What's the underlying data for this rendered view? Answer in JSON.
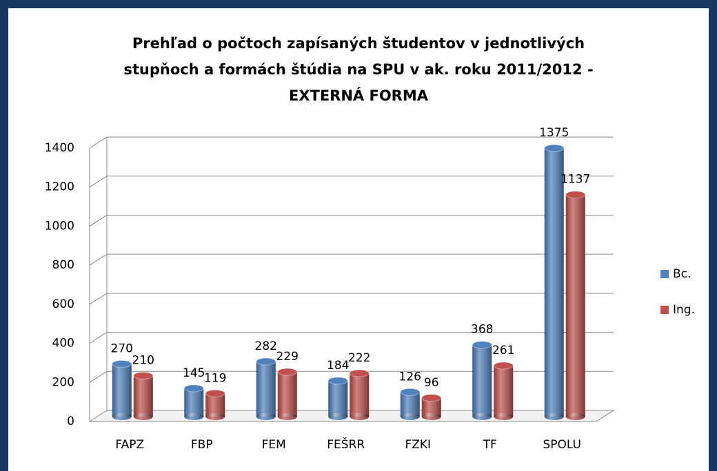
{
  "chart_data": {
    "type": "bar",
    "title": [
      "Prehľad o počtoch zapísaných študentov v jednotlivých",
      "stupňoch a formách štúdia na SPU v ak. roku 2011/2012 -",
      "EXTERNÁ FORMA"
    ],
    "categories": [
      "FAPZ",
      "FBP",
      "FEM",
      "FEŠRR",
      "FZKI",
      "TF",
      "SPOLU"
    ],
    "series": [
      {
        "name": "Bc.",
        "color": "#4f81bd",
        "values": [
          270,
          145,
          282,
          184,
          126,
          368,
          1375
        ]
      },
      {
        "name": "Ing.",
        "color": "#c0504d",
        "values": [
          210,
          119,
          229,
          222,
          96,
          261,
          1137
        ]
      }
    ],
    "ylim": [
      0,
      1400
    ],
    "yticks": [
      0,
      200,
      400,
      600,
      800,
      1000,
      1200,
      1400
    ],
    "grid": true,
    "legend": "right"
  }
}
